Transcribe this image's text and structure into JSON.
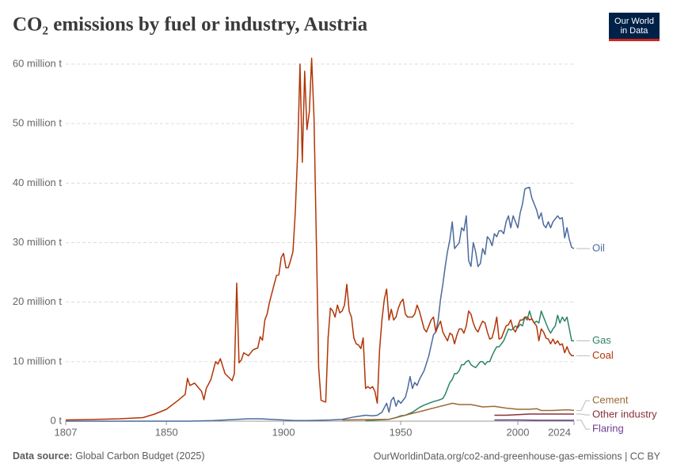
{
  "chart_data": {
    "type": "line",
    "title": "CO₂ emissions by fuel or industry, Austria",
    "logo": [
      "Our World",
      "in Data"
    ],
    "source_label": "Data source:",
    "source": "Global Carbon Budget (2025)",
    "url": "OurWorldinData.org/co2-and-greenhouse-gas-emissions | CC BY",
    "xlim": [
      1807,
      2024
    ],
    "xticks": [
      1807,
      1850,
      1900,
      1950,
      2000,
      2024
    ],
    "ylim": [
      0,
      60
    ],
    "yticks": [
      {
        "value": 0,
        "label": "0 t"
      },
      {
        "value": 10,
        "label": "10 million t"
      },
      {
        "value": 20,
        "label": "20 million t"
      },
      {
        "value": 30,
        "label": "30 million t"
      },
      {
        "value": 40,
        "label": "40 million t"
      },
      {
        "value": 50,
        "label": "50 million t"
      },
      {
        "value": 60,
        "label": "60 million t"
      }
    ],
    "grid": true,
    "series": [
      {
        "name": "Oil",
        "color": "#4c6a9c",
        "x": [
          1807,
          1860,
          1870,
          1880,
          1885,
          1890,
          1895,
          1900,
          1905,
          1910,
          1920,
          1925,
          1930,
          1935,
          1938,
          1940,
          1942,
          1944,
          1945,
          1946,
          1947,
          1948,
          1949,
          1950,
          1952,
          1953,
          1954,
          1955,
          1956,
          1957,
          1958,
          1960,
          1962,
          1964,
          1965,
          1966,
          1967,
          1968,
          1969,
          1970,
          1971,
          1972,
          1973,
          1974,
          1975,
          1976,
          1977,
          1978,
          1979,
          1980,
          1981,
          1982,
          1983,
          1984,
          1985,
          1986,
          1987,
          1988,
          1989,
          1990,
          1991,
          1992,
          1993,
          1994,
          1995,
          1996,
          1997,
          1998,
          1999,
          2000,
          2001,
          2002,
          2003,
          2004,
          2005,
          2006,
          2007,
          2008,
          2009,
          2010,
          2011,
          2012,
          2013,
          2014,
          2015,
          2016,
          2017,
          2018,
          2019,
          2020,
          2021,
          2022,
          2023,
          2024
        ],
        "values": [
          0,
          0,
          0.1,
          0.3,
          0.4,
          0.4,
          0.3,
          0.2,
          0.1,
          0.1,
          0.2,
          0.3,
          0.7,
          1.0,
          0.9,
          1.0,
          1.5,
          3.0,
          1.5,
          3.5,
          4.0,
          2.5,
          3.5,
          3.0,
          4.0,
          5.5,
          7.5,
          5.5,
          6.5,
          6.0,
          7.0,
          8.5,
          11.0,
          14.5,
          15.0,
          17.0,
          20.5,
          23.0,
          26.0,
          28.5,
          30.5,
          33.5,
          29.0,
          29.5,
          30.0,
          32.5,
          32.0,
          34.5,
          27.0,
          26.0,
          30.0,
          28.5,
          26.0,
          26.5,
          29.0,
          28.0,
          31.0,
          30.5,
          29.5,
          31.5,
          31.0,
          32.0,
          32.0,
          31.5,
          33.5,
          34.5,
          32.5,
          34.5,
          33.5,
          32.5,
          35.0,
          36.5,
          39.0,
          39.2,
          39.3,
          37.5,
          36.5,
          35.5,
          34.0,
          35.0,
          33.0,
          32.5,
          33.5,
          32.5,
          33.5,
          34.0,
          34.5,
          34.0,
          34.2,
          30.8,
          32.5,
          30.5,
          29.2,
          29.0
        ]
      },
      {
        "name": "Gas",
        "color": "#2c8465",
        "x": [
          1935,
          1940,
          1945,
          1948,
          1950,
          1952,
          1955,
          1958,
          1960,
          1962,
          1964,
          1966,
          1968,
          1969,
          1970,
          1971,
          1972,
          1973,
          1974,
          1975,
          1976,
          1977,
          1978,
          1979,
          1980,
          1981,
          1982,
          1983,
          1984,
          1985,
          1986,
          1987,
          1988,
          1989,
          1990,
          1991,
          1992,
          1993,
          1994,
          1995,
          1996,
          1997,
          1998,
          1999,
          2000,
          2001,
          2002,
          2003,
          2004,
          2005,
          2006,
          2007,
          2008,
          2009,
          2010,
          2011,
          2012,
          2013,
          2014,
          2015,
          2016,
          2017,
          2018,
          2019,
          2020,
          2021,
          2022,
          2023,
          2024
        ],
        "values": [
          0.1,
          0.2,
          0.3,
          0.6,
          0.9,
          1.0,
          1.5,
          2.3,
          2.7,
          3.0,
          3.3,
          3.5,
          3.8,
          4.5,
          5.5,
          6.5,
          7.0,
          8.0,
          8.0,
          8.5,
          9.5,
          9.5,
          10.0,
          10.2,
          9.5,
          9.2,
          9.0,
          9.5,
          10.0,
          10.0,
          9.5,
          10.0,
          10.0,
          11.0,
          11.8,
          12.5,
          12.5,
          13.0,
          13.5,
          14.5,
          15.5,
          15.3,
          15.5,
          16.0,
          15.7,
          16.3,
          16.0,
          17.5,
          17.0,
          18.5,
          17.2,
          16.5,
          16.8,
          16.5,
          18.5,
          17.5,
          16.5,
          15.5,
          14.8,
          15.5,
          16.0,
          17.8,
          16.5,
          17.5,
          16.8,
          17.5,
          15.5,
          13.5,
          13.5
        ]
      },
      {
        "name": "Coal",
        "color": "#b13507",
        "x": [
          1807,
          1820,
          1830,
          1840,
          1845,
          1850,
          1855,
          1858,
          1859,
          1860,
          1862,
          1865,
          1866,
          1867,
          1869,
          1871,
          1872,
          1873,
          1875,
          1877,
          1878,
          1879,
          1880,
          1881,
          1882,
          1883,
          1885,
          1887,
          1889,
          1890,
          1891,
          1892,
          1893,
          1894,
          1896,
          1897,
          1898,
          1899,
          1900,
          1901,
          1902,
          1903,
          1904,
          1905,
          1906,
          1907,
          1908,
          1909,
          1910,
          1911,
          1912,
          1913,
          1914,
          1915,
          1916,
          1918,
          1919,
          1920,
          1921,
          1922,
          1923,
          1924,
          1925,
          1926,
          1927,
          1928,
          1929,
          1930,
          1931,
          1932,
          1933,
          1934,
          1935,
          1936,
          1937,
          1938,
          1939,
          1940,
          1941,
          1942,
          1943,
          1944,
          1945,
          1946,
          1947,
          1948,
          1949,
          1950,
          1951,
          1952,
          1953,
          1954,
          1955,
          1956,
          1957,
          1958,
          1959,
          1960,
          1961,
          1962,
          1963,
          1964,
          1965,
          1966,
          1967,
          1968,
          1969,
          1970,
          1971,
          1972,
          1973,
          1974,
          1975,
          1976,
          1977,
          1978,
          1979,
          1980,
          1981,
          1982,
          1983,
          1984,
          1985,
          1986,
          1987,
          1988,
          1989,
          1990,
          1991,
          1992,
          1993,
          1994,
          1995,
          1996,
          1997,
          1998,
          1999,
          2000,
          2001,
          2002,
          2003,
          2004,
          2005,
          2006,
          2007,
          2008,
          2009,
          2010,
          2011,
          2012,
          2013,
          2014,
          2015,
          2016,
          2017,
          2018,
          2019,
          2020,
          2021,
          2022,
          2023,
          2024
        ],
        "values": [
          0.2,
          0.3,
          0.4,
          0.6,
          1.2,
          2.0,
          3.5,
          4.5,
          7.2,
          6.0,
          6.4,
          5.0,
          3.6,
          5.5,
          7.0,
          10.0,
          9.6,
          10.5,
          8.0,
          7.2,
          6.8,
          8.0,
          23.2,
          9.8,
          10.3,
          11.5,
          11.0,
          12.0,
          12.3,
          14.2,
          13.6,
          17.0,
          18.0,
          20.0,
          23.0,
          24.5,
          24.6,
          27.5,
          28.2,
          25.8,
          25.8,
          27.0,
          28.5,
          35.0,
          45.0,
          60.0,
          43.5,
          58.8,
          49.0,
          52.0,
          61.0,
          51.0,
          30.0,
          9.0,
          3.5,
          3.2,
          14.0,
          19.0,
          18.5,
          17.5,
          19.5,
          18.2,
          18.5,
          19.5,
          23.0,
          18.5,
          17.5,
          14.0,
          13.0,
          12.8,
          12.2,
          14.0,
          5.5,
          5.8,
          5.5,
          5.8,
          5.0,
          3.0,
          12.0,
          17.0,
          20.5,
          22.2,
          17.0,
          18.8,
          17.0,
          17.5,
          19.0,
          20.0,
          20.5,
          18.0,
          17.5,
          17.5,
          17.5,
          18.0,
          19.5,
          18.5,
          17.0,
          15.5,
          15.0,
          16.0,
          17.0,
          17.5,
          15.0,
          16.0,
          16.8,
          15.0,
          14.2,
          13.5,
          14.8,
          14.5,
          13.0,
          14.5,
          15.5,
          15.5,
          14.8,
          16.0,
          18.5,
          18.0,
          16.5,
          15.5,
          15.0,
          16.0,
          16.8,
          16.5,
          15.0,
          13.8,
          14.0,
          15.5,
          17.5,
          13.8,
          14.0,
          15.0,
          16.0,
          16.2,
          17.0,
          15.5,
          15.0,
          16.0,
          17.0,
          17.0,
          17.5,
          17.5,
          17.0,
          17.2,
          16.5,
          16.0,
          13.5,
          15.5,
          15.0,
          14.0,
          13.8,
          13.0,
          13.8,
          13.0,
          13.5,
          12.8,
          13.0,
          11.5,
          12.5,
          11.5,
          11.0,
          11.0
        ]
      },
      {
        "name": "Cement",
        "color": "#9a6a32",
        "x": [
          1925,
          1945,
          1950,
          1955,
          1960,
          1965,
          1970,
          1972,
          1975,
          1980,
          1985,
          1990,
          1995,
          2000,
          2005,
          2008,
          2010,
          2015,
          2020,
          2022,
          2024
        ],
        "values": [
          0.2,
          0.3,
          0.8,
          1.3,
          1.8,
          2.3,
          2.8,
          3.0,
          2.8,
          2.8,
          2.4,
          2.5,
          2.2,
          2.0,
          2.0,
          2.1,
          1.8,
          1.8,
          1.9,
          1.9,
          1.8
        ]
      },
      {
        "name": "Other industry",
        "color": "#883039",
        "x": [
          1990,
          1995,
          2000,
          2005,
          2010,
          2015,
          2020,
          2024
        ],
        "values": [
          1.0,
          1.0,
          1.1,
          1.2,
          1.2,
          1.2,
          1.2,
          1.2
        ]
      },
      {
        "name": "Flaring",
        "color": "#6d3e91",
        "x": [
          1990,
          2000,
          2010,
          2024
        ],
        "values": [
          0.2,
          0.2,
          0.15,
          0.15
        ]
      }
    ]
  }
}
